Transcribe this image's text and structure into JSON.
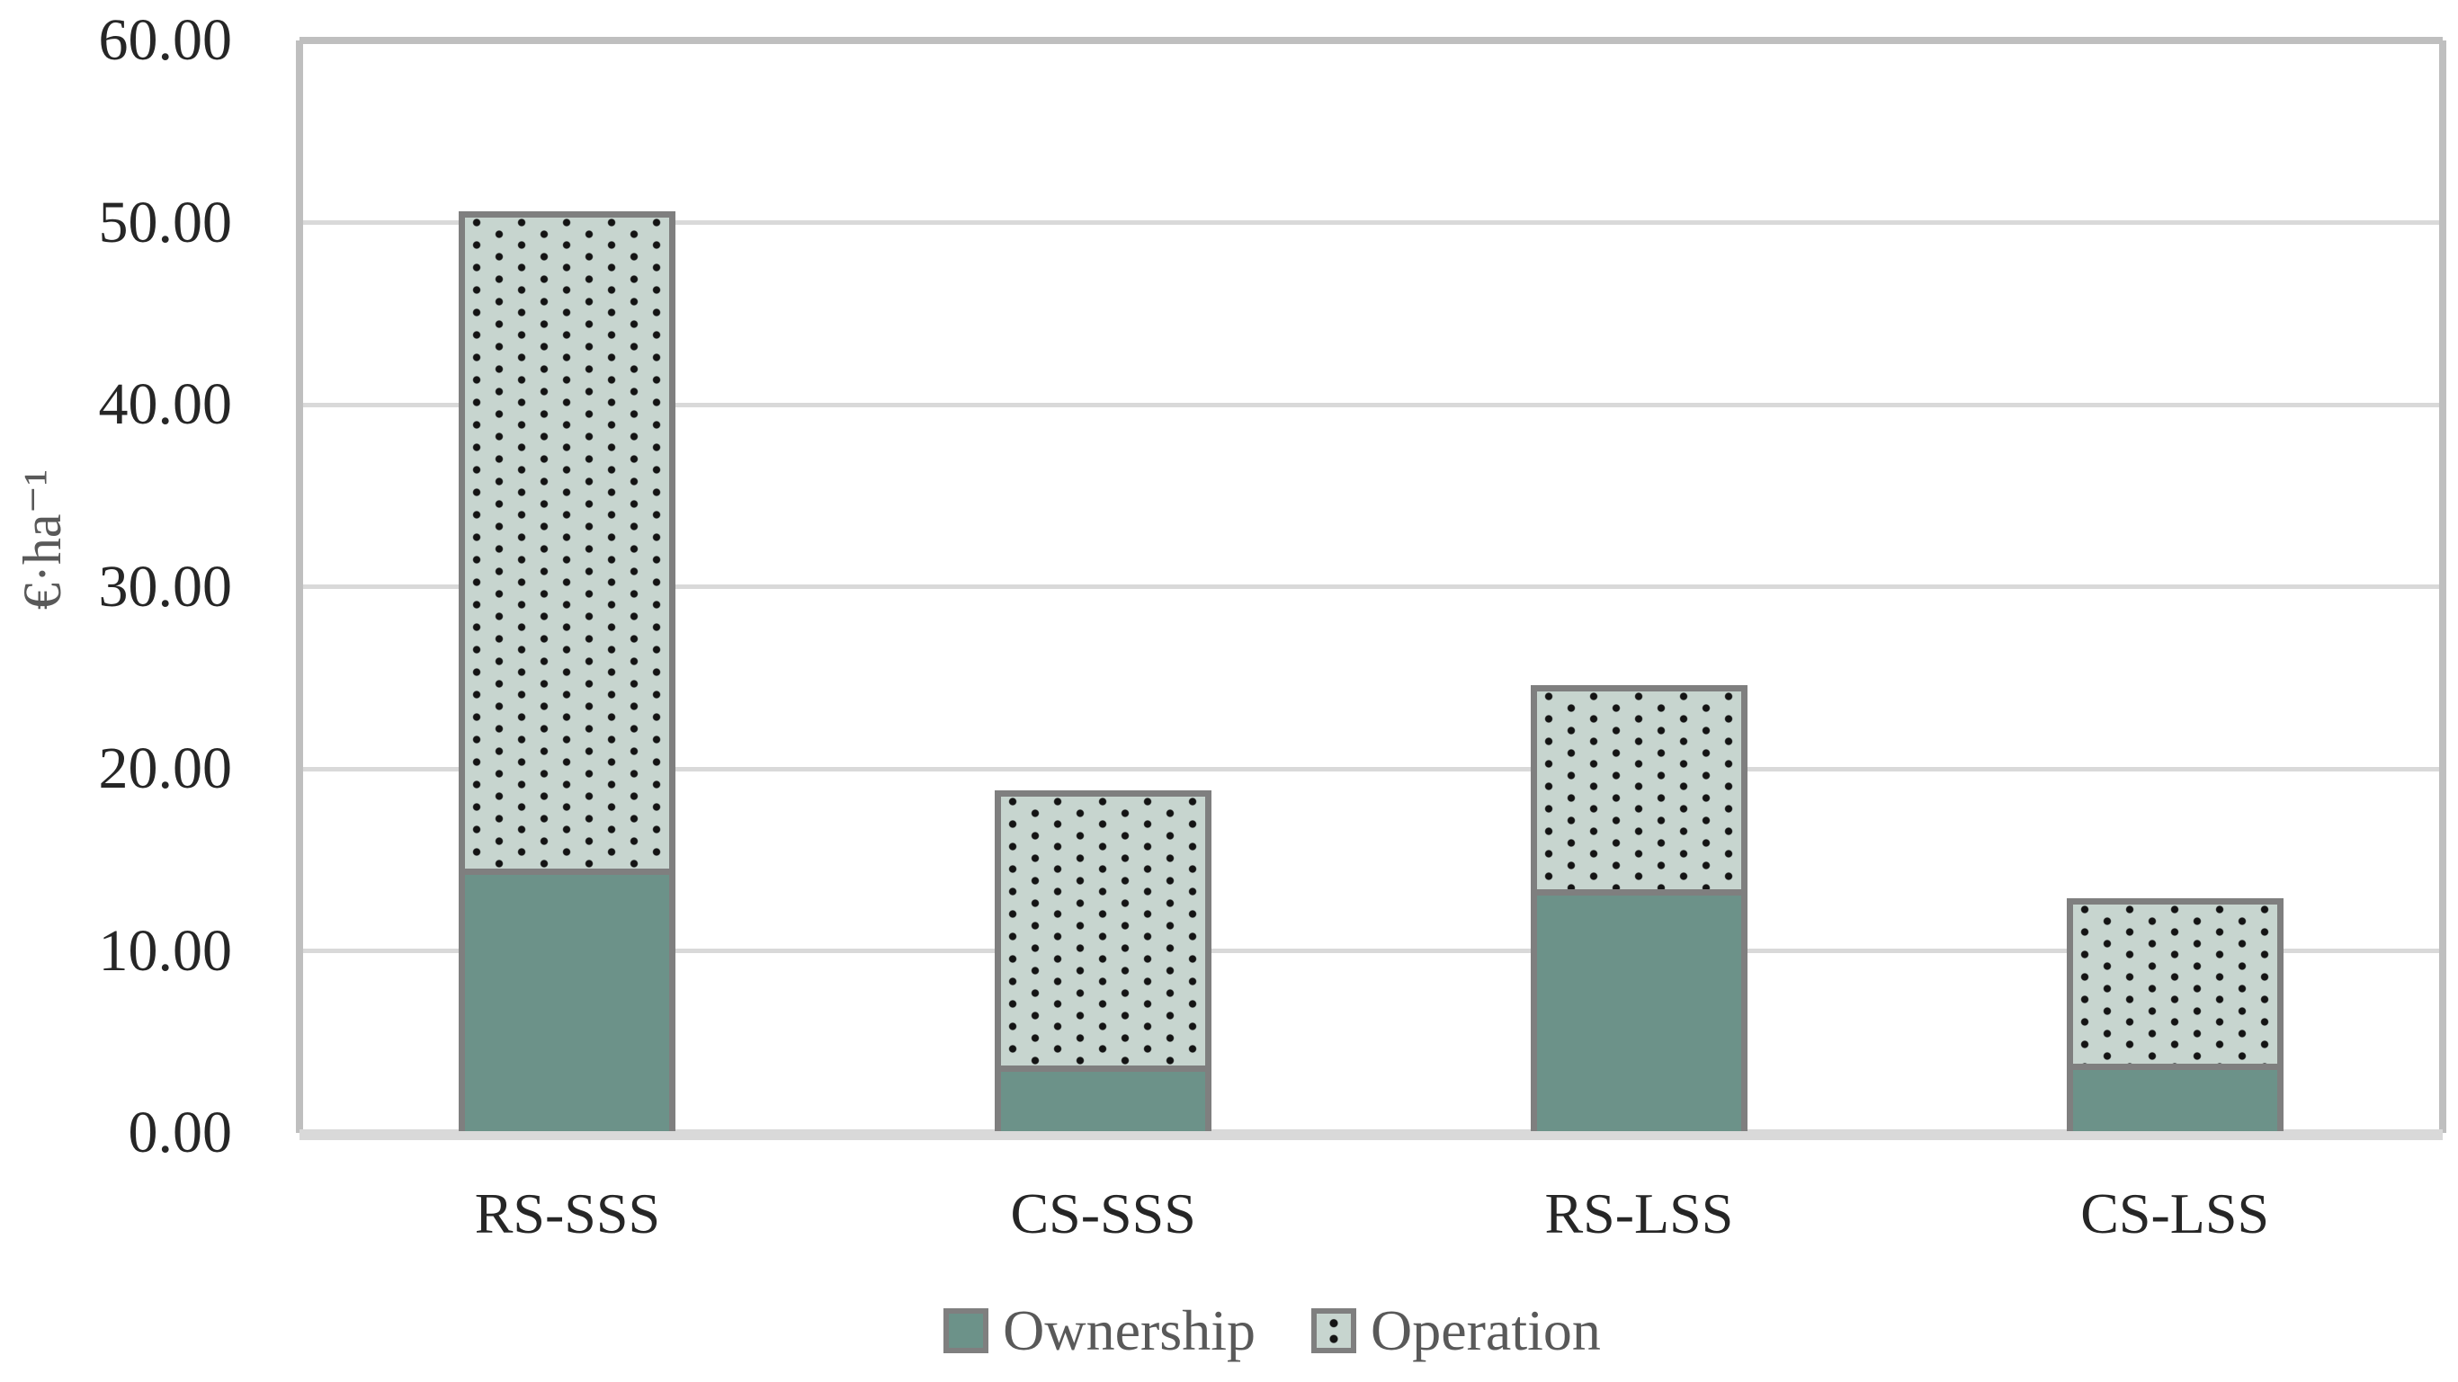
{
  "chart_data": {
    "type": "bar",
    "stacked": true,
    "orientation": "vertical",
    "title": "",
    "xlabel": "",
    "ylabel": "€·ha⁻¹",
    "categories": [
      "RS-SSS",
      "CS-SSS",
      "RS-LSS",
      "CS-LSS"
    ],
    "series": [
      {
        "name": "Ownership",
        "pattern": "solid",
        "color": "#6C9289",
        "values": [
          14.4,
          3.6,
          13.3,
          3.7
        ]
      },
      {
        "name": "Operation",
        "pattern": "dots",
        "color": "#C7D5CF",
        "values": [
          36.1,
          15.1,
          11.2,
          9.1
        ]
      }
    ],
    "stack_totals": [
      50.5,
      18.7,
      24.5,
      12.8
    ],
    "ylim": [
      0,
      60
    ],
    "ytick_step": 10,
    "ytick_labels": [
      "0.00",
      "10.00",
      "20.00",
      "30.00",
      "40.00",
      "50.00",
      "60.00"
    ],
    "grid": true,
    "gridline_color": "#d9d9d9",
    "plot_border_color": "#bfbfbf",
    "bar_border_color": "#7f7f7f",
    "dot_color": "#141414",
    "tick_text_color": "#262626",
    "label_text_color": "#595959",
    "legend_position": "bottom"
  }
}
